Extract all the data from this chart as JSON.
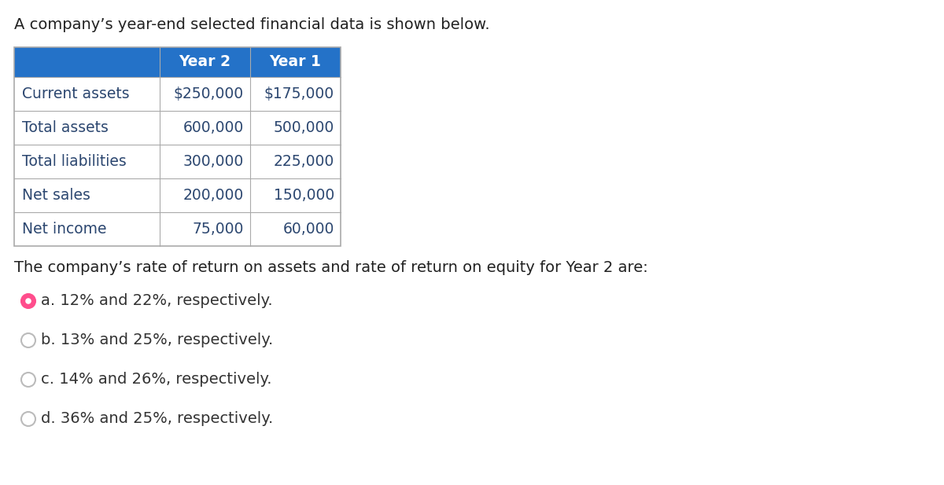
{
  "title": "A company’s year-end selected financial data is shown below.",
  "header_bg": "#2472C8",
  "header_text_color": "#FFFFFF",
  "table_border_color": "#AAAAAA",
  "table_text_color": "#2C4770",
  "body_bg": "#FFFFFF",
  "col_headers": [
    "Year 2",
    "Year 1"
  ],
  "row_labels": [
    "Current assets",
    "Total assets",
    "Total liabilities",
    "Net sales",
    "Net income"
  ],
  "year2_values": [
    "$250,000",
    "600,000",
    "300,000",
    "200,000",
    "75,000"
  ],
  "year1_values": [
    "$175,000",
    "500,000",
    "225,000",
    "150,000",
    "60,000"
  ],
  "question": "The company’s rate of return on assets and rate of return on equity for Year 2 are:",
  "options": [
    "a. 12% and 22%, respectively.",
    "b. 13% and 25%, respectively.",
    "c. 14% and 26%, respectively.",
    "d. 36% and 25%, respectively."
  ],
  "selected_option": 0,
  "selected_color": "#FF4D8C",
  "unselected_color": "#BBBBBB",
  "option_text_color": "#333333",
  "title_fontsize": 14,
  "table_fontsize": 13.5,
  "question_fontsize": 14,
  "option_fontsize": 14
}
